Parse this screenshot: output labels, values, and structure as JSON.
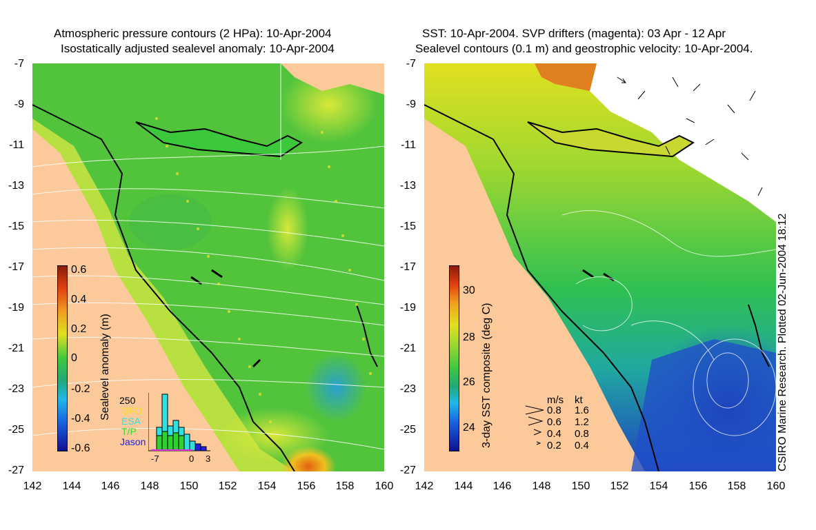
{
  "left_panel": {
    "title_line1": "Atmospheric pressure contours (2 HPa): 10-Apr-2004",
    "title_line2": "Isostatically adjusted sealevel anomaly: 10-Apr-2004",
    "colorbar_label": "Sealevel anomaly (m)",
    "colorbar_ticks": [
      "0.6",
      "0.4",
      "0.2",
      "0",
      "-0.2",
      "-0.4",
      "-0.6"
    ],
    "histogram": {
      "ymax_label": "250",
      "xtick_labels": [
        "-7",
        "0",
        "3"
      ],
      "legend": [
        {
          "label": "GFO",
          "color": "#f0e020"
        },
        {
          "label": "ESA",
          "color": "#30e0e0"
        },
        {
          "label": "T/P",
          "color": "#30e030"
        },
        {
          "label": "Jason",
          "color": "#2020e0"
        }
      ]
    }
  },
  "right_panel": {
    "title_line1": "SST: 10-Apr-2004. SVP drifters (magenta): 03 Apr - 12 Apr",
    "title_line2": "Sealevel contours (0.1 m) and geostrophic velocity: 10-Apr-2004.",
    "colorbar_label": "3-day SST composite (deg C)",
    "colorbar_ticks": [
      "30",
      "28",
      "26",
      "24"
    ],
    "velocity_key": {
      "header_ms": "m/s",
      "header_kt": "kt",
      "rows": [
        {
          "ms": "0.8",
          "kt": "1.6"
        },
        {
          "ms": "0.6",
          "kt": "1.2"
        },
        {
          "ms": "0.4",
          "kt": "0.8"
        },
        {
          "ms": "0.2",
          "kt": "0.4"
        }
      ]
    }
  },
  "axes": {
    "y_labels": [
      "-7",
      "-9",
      "-11",
      "-13",
      "-15",
      "-17",
      "-19",
      "-21",
      "-23",
      "-25",
      "-27"
    ],
    "x_labels": [
      "142",
      "144",
      "146",
      "148",
      "150",
      "152",
      "154",
      "156",
      "158",
      "160"
    ]
  },
  "credit": "CSIRO Marine Research. Plotted 02-Jun-2004 18:12",
  "colors": {
    "land": "#fbc99a",
    "sea_green": "#3cc83c",
    "sst_blue": "#1e46c8"
  }
}
